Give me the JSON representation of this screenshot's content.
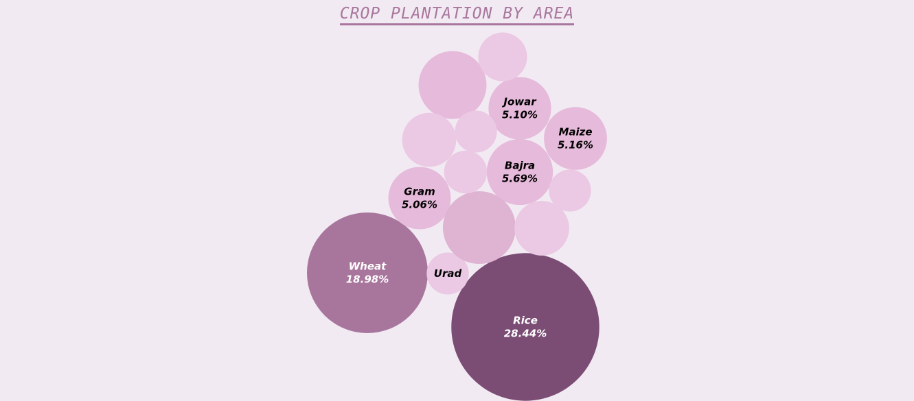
{
  "chart_data": {
    "type": "bubble",
    "title": "CROP PLANTATION BY AREA",
    "colors": {
      "background": "#f2eaf3",
      "title": "#a8769c",
      "large": "#7b4d75",
      "medium": "#a8769c",
      "small": "#e6bada",
      "smaller": "#ebc8e3",
      "small_alt": "#dfb3d2",
      "label_dark": "#000000",
      "label_light": "#ffffff"
    },
    "bubbles": [
      {
        "name": "Rice",
        "value": 28.44,
        "percent_label": "28.44%",
        "color_key": "large",
        "label_key": "label_light"
      },
      {
        "name": "Wheat",
        "value": 18.98,
        "percent_label": "18.98%",
        "color_key": "medium",
        "label_key": "label_light"
      },
      {
        "name": "Bajra",
        "value": 5.69,
        "percent_label": "5.69%",
        "color_key": "small",
        "label_key": "label_dark"
      },
      {
        "name": "Maize",
        "value": 5.16,
        "percent_label": "5.16%",
        "color_key": "small",
        "label_key": "label_dark"
      },
      {
        "name": "Jowar",
        "value": 5.1,
        "percent_label": "5.10%",
        "color_key": "small",
        "label_key": "label_dark"
      },
      {
        "name": "Gram",
        "value": 5.06,
        "percent_label": "5.06%",
        "color_key": "small",
        "label_key": "label_dark"
      },
      {
        "name": "Urad",
        "value": 2.3,
        "percent_label": "",
        "color_key": "smaller",
        "label_key": "label_dark"
      },
      {
        "name": "",
        "value": 6.9,
        "percent_label": "",
        "color_key": "small_alt",
        "label_key": "label_dark"
      },
      {
        "name": "",
        "value": 6.0,
        "percent_label": "",
        "color_key": "small",
        "label_key": "label_dark"
      },
      {
        "name": "",
        "value": 3.8,
        "percent_label": "",
        "color_key": "smaller",
        "label_key": "label_dark"
      },
      {
        "name": "",
        "value": 3.9,
        "percent_label": "",
        "color_key": "smaller",
        "label_key": "label_dark"
      },
      {
        "name": "",
        "value": 3.1,
        "percent_label": "",
        "color_key": "smaller",
        "label_key": "label_dark"
      },
      {
        "name": "",
        "value": 2.4,
        "percent_label": "",
        "color_key": "smaller",
        "label_key": "label_dark"
      },
      {
        "name": "",
        "value": 2.3,
        "percent_label": "",
        "color_key": "smaller",
        "label_key": "label_dark"
      },
      {
        "name": "",
        "value": 2.3,
        "percent_label": "",
        "color_key": "smaller",
        "label_key": "label_dark"
      }
    ]
  }
}
